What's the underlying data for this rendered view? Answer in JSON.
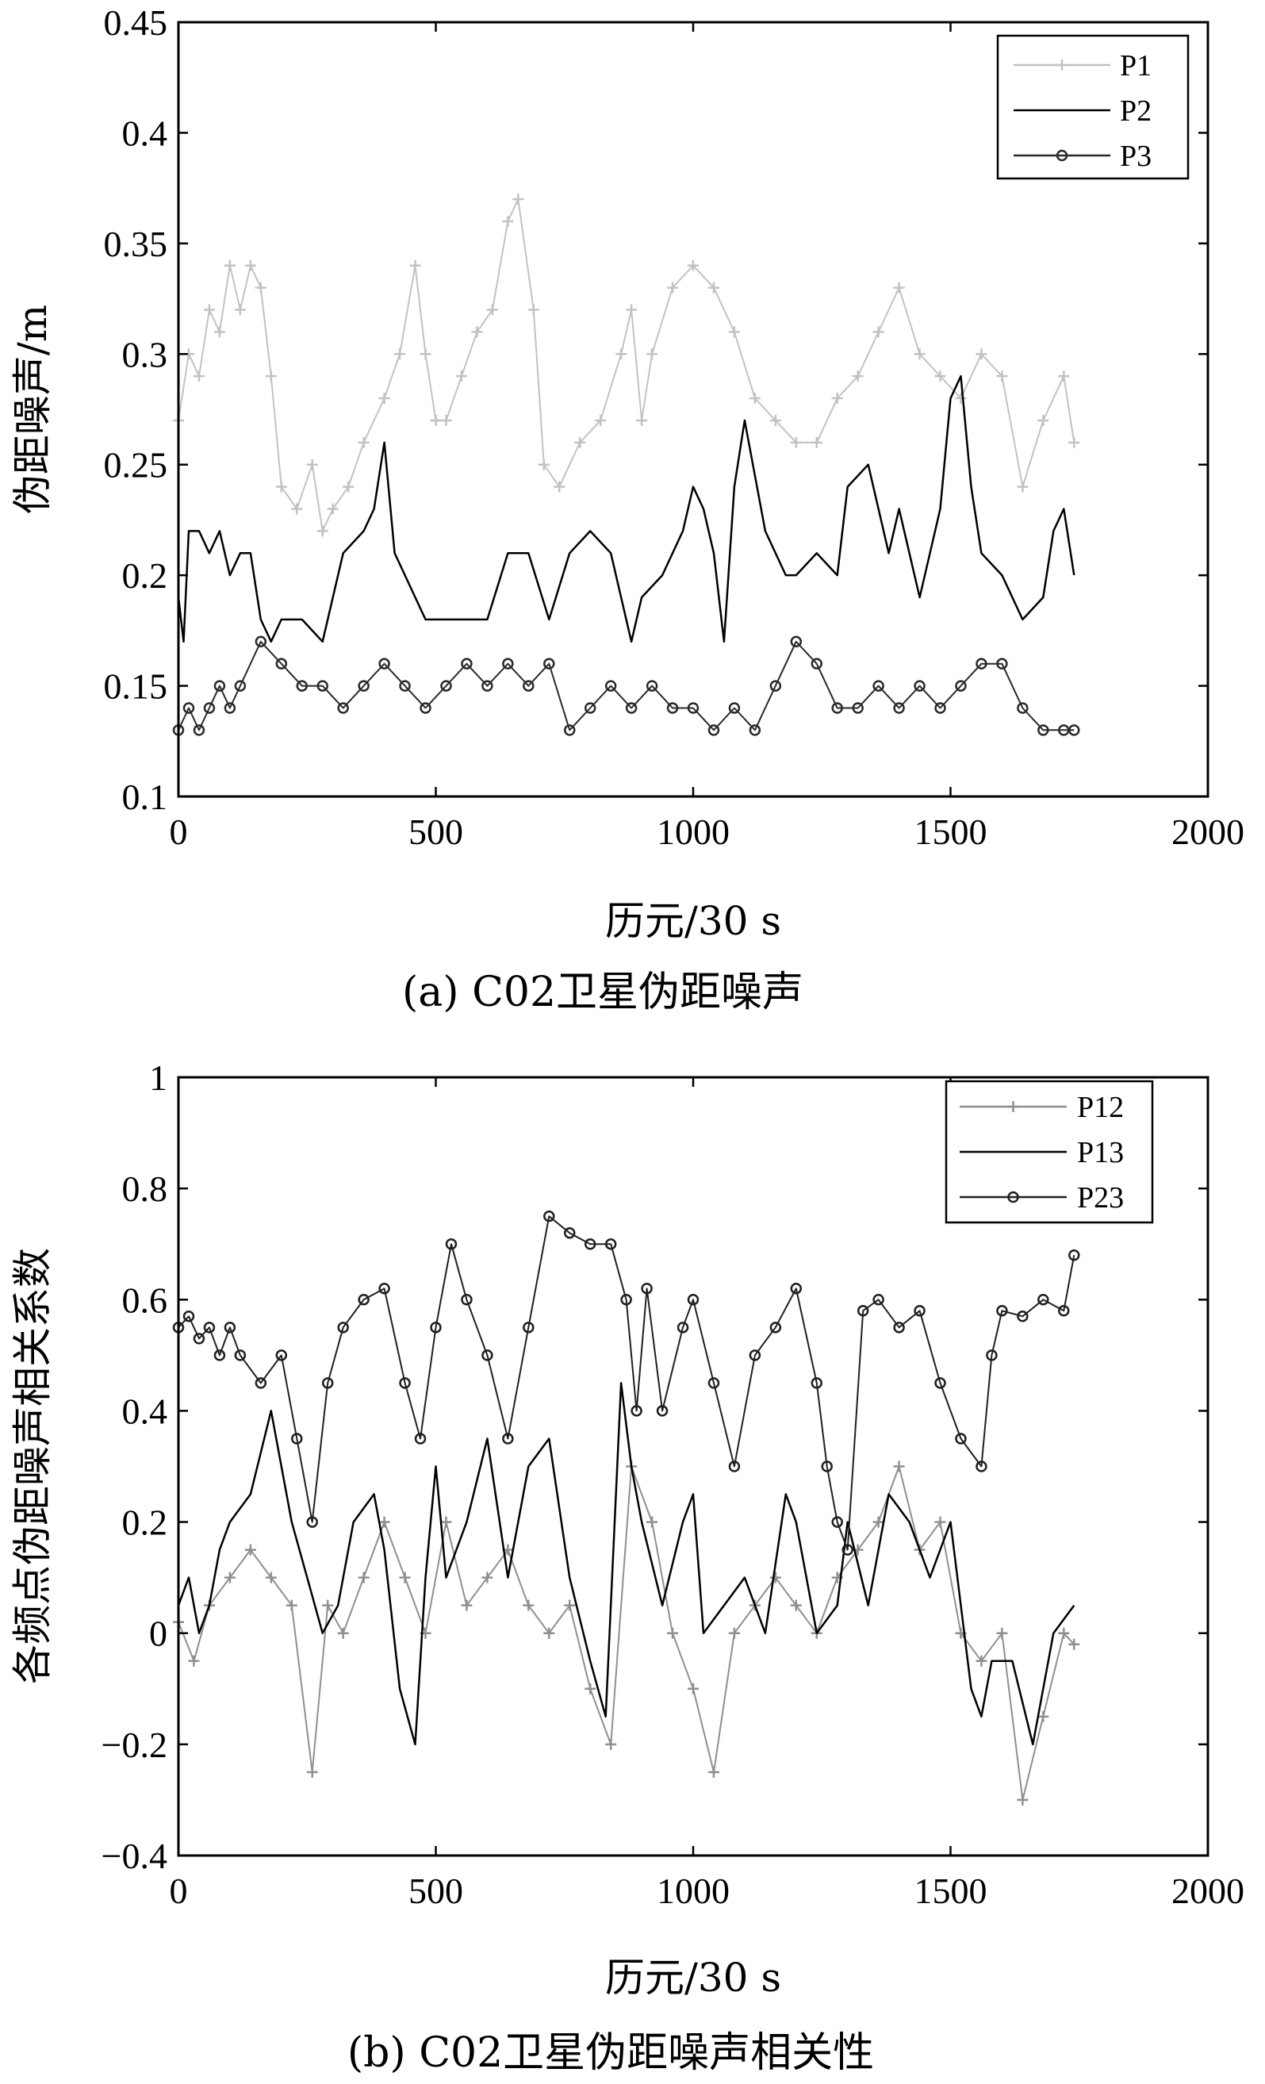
{
  "chart_data": [
    {
      "id": "a",
      "type": "line",
      "caption": "(a) C02卫星伪距噪声",
      "xlabel": "历元/30 s",
      "ylabel": "伪距噪声/m",
      "xlim": [
        0,
        2000
      ],
      "ylim": [
        0.1,
        0.45
      ],
      "xticks": [
        0,
        500,
        1000,
        1500,
        2000
      ],
      "yticks": [
        0.1,
        0.15,
        0.2,
        0.25,
        0.3,
        0.35,
        0.4,
        0.45
      ],
      "xtick_labels": [
        "0",
        "500",
        "1000",
        "1500",
        "2000"
      ],
      "ytick_labels": [
        "0.1",
        "0.15",
        "0.2",
        "0.25",
        "0.3",
        "0.35",
        "0.4",
        "0.45"
      ],
      "legend_position": "top-right",
      "series": [
        {
          "name": "P1",
          "color": "#c2c2c2",
          "marker": "plus",
          "x": [
            0,
            20,
            40,
            60,
            80,
            100,
            120,
            140,
            160,
            180,
            200,
            230,
            260,
            280,
            300,
            330,
            360,
            400,
            430,
            460,
            480,
            500,
            520,
            550,
            580,
            610,
            640,
            660,
            690,
            710,
            740,
            780,
            820,
            860,
            880,
            900,
            920,
            960,
            1000,
            1040,
            1080,
            1120,
            1160,
            1200,
            1240,
            1280,
            1320,
            1360,
            1400,
            1440,
            1480,
            1520,
            1560,
            1600,
            1640,
            1680,
            1720,
            1740
          ],
          "y": [
            0.27,
            0.3,
            0.29,
            0.32,
            0.31,
            0.34,
            0.32,
            0.34,
            0.33,
            0.29,
            0.24,
            0.23,
            0.25,
            0.22,
            0.23,
            0.24,
            0.26,
            0.28,
            0.3,
            0.34,
            0.3,
            0.27,
            0.27,
            0.29,
            0.31,
            0.32,
            0.36,
            0.37,
            0.32,
            0.25,
            0.24,
            0.26,
            0.27,
            0.3,
            0.32,
            0.27,
            0.3,
            0.33,
            0.34,
            0.33,
            0.31,
            0.28,
            0.27,
            0.26,
            0.26,
            0.28,
            0.29,
            0.31,
            0.33,
            0.3,
            0.29,
            0.28,
            0.3,
            0.29,
            0.24,
            0.27,
            0.29,
            0.26
          ]
        },
        {
          "name": "P2",
          "color": "#000000",
          "marker": "none",
          "x": [
            0,
            10,
            20,
            40,
            60,
            80,
            100,
            120,
            140,
            160,
            180,
            200,
            240,
            280,
            320,
            360,
            380,
            400,
            420,
            440,
            480,
            520,
            560,
            600,
            640,
            680,
            720,
            760,
            800,
            840,
            860,
            880,
            900,
            940,
            980,
            1000,
            1020,
            1040,
            1060,
            1080,
            1100,
            1140,
            1180,
            1200,
            1240,
            1280,
            1300,
            1340,
            1380,
            1400,
            1440,
            1480,
            1500,
            1520,
            1540,
            1560,
            1600,
            1640,
            1680,
            1700,
            1720,
            1740
          ],
          "y": [
            0.19,
            0.17,
            0.22,
            0.22,
            0.21,
            0.22,
            0.2,
            0.21,
            0.21,
            0.18,
            0.17,
            0.18,
            0.18,
            0.17,
            0.21,
            0.22,
            0.23,
            0.26,
            0.21,
            0.2,
            0.18,
            0.18,
            0.18,
            0.18,
            0.21,
            0.21,
            0.18,
            0.21,
            0.22,
            0.21,
            0.19,
            0.17,
            0.19,
            0.2,
            0.22,
            0.24,
            0.23,
            0.21,
            0.17,
            0.24,
            0.27,
            0.22,
            0.2,
            0.2,
            0.21,
            0.2,
            0.24,
            0.25,
            0.21,
            0.23,
            0.19,
            0.23,
            0.28,
            0.29,
            0.24,
            0.21,
            0.2,
            0.18,
            0.19,
            0.22,
            0.23,
            0.2
          ]
        },
        {
          "name": "P3",
          "color": "#2a2a2a",
          "marker": "circle",
          "x": [
            0,
            20,
            40,
            60,
            80,
            100,
            120,
            160,
            200,
            240,
            280,
            320,
            360,
            400,
            440,
            480,
            520,
            560,
            600,
            640,
            680,
            720,
            760,
            800,
            840,
            880,
            920,
            960,
            1000,
            1040,
            1080,
            1120,
            1160,
            1200,
            1240,
            1280,
            1320,
            1360,
            1400,
            1440,
            1480,
            1520,
            1560,
            1600,
            1640,
            1680,
            1720,
            1740
          ],
          "y": [
            0.13,
            0.14,
            0.13,
            0.14,
            0.15,
            0.14,
            0.15,
            0.17,
            0.16,
            0.15,
            0.15,
            0.14,
            0.15,
            0.16,
            0.15,
            0.14,
            0.15,
            0.16,
            0.15,
            0.16,
            0.15,
            0.16,
            0.13,
            0.14,
            0.15,
            0.14,
            0.15,
            0.14,
            0.14,
            0.13,
            0.14,
            0.13,
            0.15,
            0.17,
            0.16,
            0.14,
            0.14,
            0.15,
            0.14,
            0.15,
            0.14,
            0.15,
            0.16,
            0.16,
            0.14,
            0.13,
            0.13,
            0.13
          ]
        }
      ]
    },
    {
      "id": "b",
      "type": "line",
      "caption": "(b) C02卫星伪距噪声相关性",
      "xlabel": "历元/30 s",
      "ylabel": "各频点伪距噪声相关系数",
      "xlim": [
        0,
        2000
      ],
      "ylim": [
        -0.4,
        1
      ],
      "xticks": [
        0,
        500,
        1000,
        1500,
        2000
      ],
      "yticks": [
        -0.4,
        -0.2,
        0,
        0.2,
        0.4,
        0.6,
        0.8,
        1
      ],
      "xtick_labels": [
        "0",
        "500",
        "1000",
        "1500",
        "2000"
      ],
      "ytick_labels": [
        "−0.4",
        "−0.2",
        "0",
        "0.2",
        "0.4",
        "0.6",
        "0.8",
        "1"
      ],
      "legend_position": "top-right",
      "series": [
        {
          "name": "P12",
          "color": "#8f8f8f",
          "marker": "plus",
          "x": [
            0,
            30,
            60,
            100,
            140,
            180,
            220,
            260,
            290,
            320,
            360,
            400,
            440,
            480,
            520,
            560,
            600,
            640,
            680,
            720,
            760,
            800,
            840,
            880,
            920,
            960,
            1000,
            1040,
            1080,
            1120,
            1160,
            1200,
            1240,
            1280,
            1320,
            1360,
            1400,
            1440,
            1480,
            1520,
            1560,
            1600,
            1640,
            1680,
            1720,
            1740
          ],
          "y": [
            0.02,
            -0.05,
            0.05,
            0.1,
            0.15,
            0.1,
            0.05,
            -0.25,
            0.05,
            0.0,
            0.1,
            0.2,
            0.1,
            0.0,
            0.2,
            0.05,
            0.1,
            0.15,
            0.05,
            0.0,
            0.05,
            -0.1,
            -0.2,
            0.3,
            0.2,
            0.0,
            -0.1,
            -0.25,
            0.0,
            0.05,
            0.1,
            0.05,
            0.0,
            0.1,
            0.15,
            0.2,
            0.3,
            0.15,
            0.2,
            0.0,
            -0.05,
            0.0,
            -0.3,
            -0.15,
            0.0,
            -0.02
          ]
        },
        {
          "name": "P13",
          "color": "#000000",
          "marker": "none",
          "x": [
            0,
            20,
            40,
            60,
            80,
            100,
            140,
            180,
            200,
            220,
            250,
            280,
            310,
            340,
            380,
            400,
            430,
            460,
            480,
            500,
            520,
            560,
            600,
            640,
            680,
            720,
            760,
            800,
            830,
            860,
            880,
            900,
            940,
            980,
            1000,
            1020,
            1060,
            1100,
            1140,
            1180,
            1200,
            1240,
            1280,
            1300,
            1340,
            1380,
            1420,
            1460,
            1500,
            1540,
            1560,
            1580,
            1620,
            1660,
            1700,
            1740
          ],
          "y": [
            0.05,
            0.1,
            0.0,
            0.05,
            0.15,
            0.2,
            0.25,
            0.4,
            0.3,
            0.2,
            0.1,
            0.0,
            0.05,
            0.2,
            0.25,
            0.15,
            -0.1,
            -0.2,
            0.1,
            0.3,
            0.1,
            0.2,
            0.35,
            0.1,
            0.3,
            0.35,
            0.1,
            -0.05,
            -0.15,
            0.45,
            0.3,
            0.2,
            0.05,
            0.2,
            0.25,
            0.0,
            0.05,
            0.1,
            0.0,
            0.25,
            0.2,
            0.0,
            0.05,
            0.2,
            0.05,
            0.25,
            0.2,
            0.1,
            0.2,
            -0.1,
            -0.15,
            -0.05,
            -0.05,
            -0.2,
            0.0,
            0.05
          ]
        },
        {
          "name": "P23",
          "color": "#202020",
          "marker": "circle",
          "x": [
            0,
            20,
            40,
            60,
            80,
            100,
            120,
            160,
            200,
            230,
            260,
            290,
            320,
            360,
            400,
            440,
            470,
            500,
            530,
            560,
            600,
            640,
            680,
            720,
            760,
            800,
            840,
            870,
            890,
            910,
            940,
            980,
            1000,
            1040,
            1080,
            1120,
            1160,
            1200,
            1240,
            1260,
            1280,
            1300,
            1330,
            1360,
            1400,
            1440,
            1480,
            1520,
            1560,
            1580,
            1600,
            1640,
            1680,
            1720,
            1740
          ],
          "y": [
            0.55,
            0.57,
            0.53,
            0.55,
            0.5,
            0.55,
            0.5,
            0.45,
            0.5,
            0.35,
            0.2,
            0.45,
            0.55,
            0.6,
            0.62,
            0.45,
            0.35,
            0.55,
            0.7,
            0.6,
            0.5,
            0.35,
            0.55,
            0.75,
            0.72,
            0.7,
            0.7,
            0.6,
            0.4,
            0.62,
            0.4,
            0.55,
            0.6,
            0.45,
            0.3,
            0.5,
            0.55,
            0.62,
            0.45,
            0.3,
            0.2,
            0.15,
            0.58,
            0.6,
            0.55,
            0.58,
            0.45,
            0.35,
            0.3,
            0.5,
            0.58,
            0.57,
            0.6,
            0.58,
            0.68
          ]
        }
      ]
    }
  ]
}
